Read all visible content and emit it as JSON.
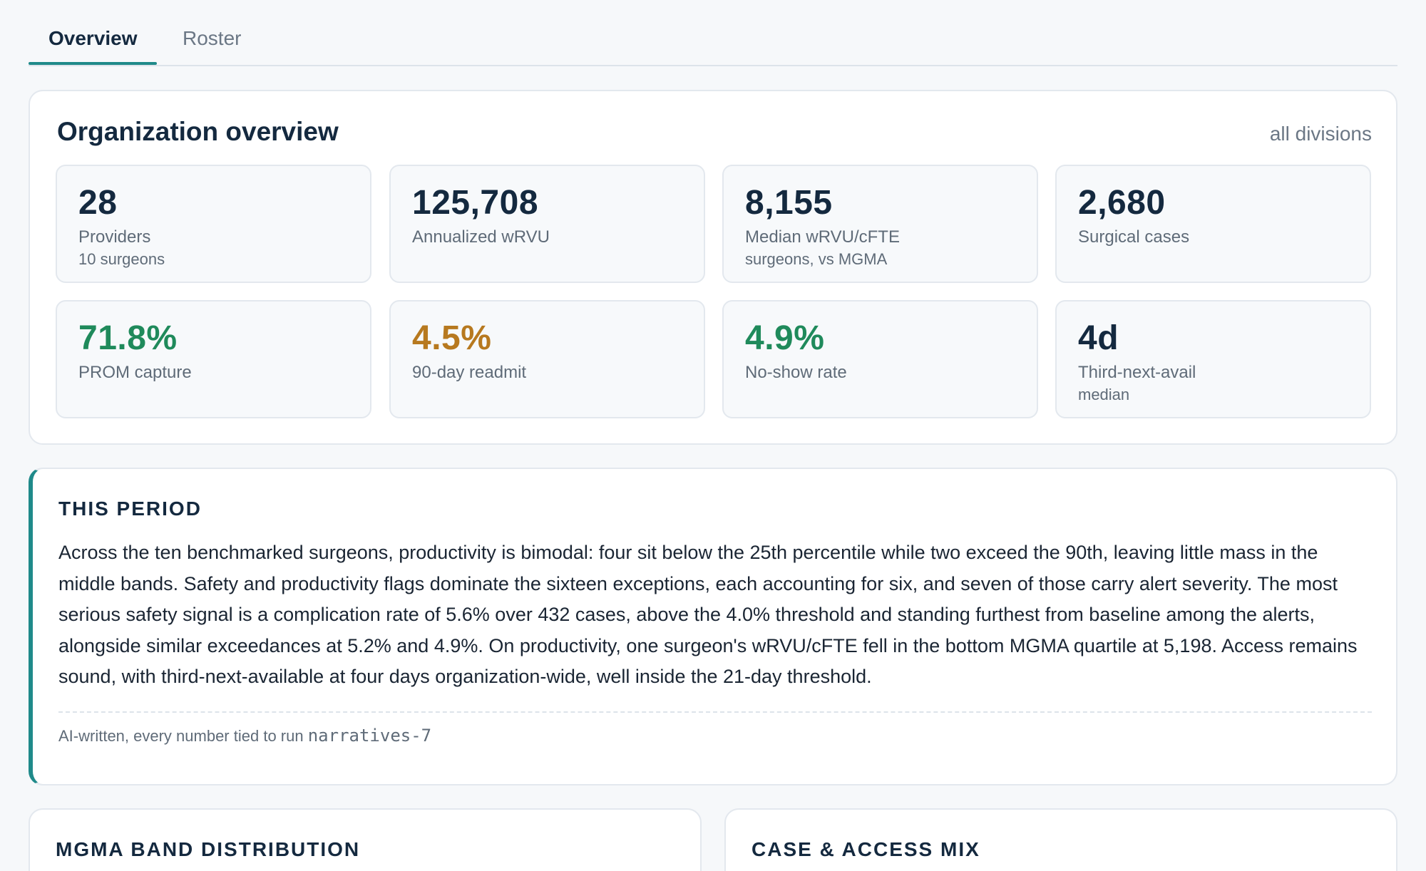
{
  "tabs": [
    {
      "label": "Overview",
      "active": true
    },
    {
      "label": "Roster",
      "active": false
    }
  ],
  "overview": {
    "title": "Organization overview",
    "scope": "all divisions",
    "stats": [
      {
        "value": "28",
        "label": "Providers",
        "sub": "10 surgeons",
        "color": "#14293f"
      },
      {
        "value": "125,708",
        "label": "Annualized wRVU",
        "sub": "",
        "color": "#14293f"
      },
      {
        "value": "8,155",
        "label": "Median wRVU/cFTE",
        "sub": "surgeons, vs MGMA",
        "color": "#14293f"
      },
      {
        "value": "2,680",
        "label": "Surgical cases",
        "sub": "",
        "color": "#14293f"
      },
      {
        "value": "71.8%",
        "label": "PROM capture",
        "sub": "",
        "color": "#1f8a5b"
      },
      {
        "value": "4.5%",
        "label": "90-day readmit",
        "sub": "",
        "color": "#b7791f"
      },
      {
        "value": "4.9%",
        "label": "No-show rate",
        "sub": "",
        "color": "#1f8a5b"
      },
      {
        "value": "4d",
        "label": "Third-next-avail",
        "sub": "median",
        "color": "#14293f"
      }
    ]
  },
  "period": {
    "title": "THIS PERIOD",
    "body": "Across the ten benchmarked surgeons, productivity is bimodal: four sit below the 25th percentile while two exceed the 90th, leaving little mass in the middle bands. Safety and productivity flags dominate the sixteen exceptions, each accounting for six, and seven of those carry alert severity. The most serious safety signal is a complication rate of 5.6% over 432 cases, above the 4.0% threshold and standing furthest from baseline among the alerts, alongside similar exceedances at 5.2% and 4.9%. On productivity, one surgeon's wRVU/cFTE fell in the bottom MGMA quartile at 5,198. Access remains sound, with third-next-available at four days organization-wide, well inside the 21-day threshold.",
    "footnote_prefix": "AI-written, every number tied to run",
    "run_id": "narratives-7",
    "accent_color": "#1f8a8a"
  },
  "sections": {
    "band_title": "MGMA BAND DISTRIBUTION",
    "mix_title": "CASE & ACCESS MIX"
  }
}
